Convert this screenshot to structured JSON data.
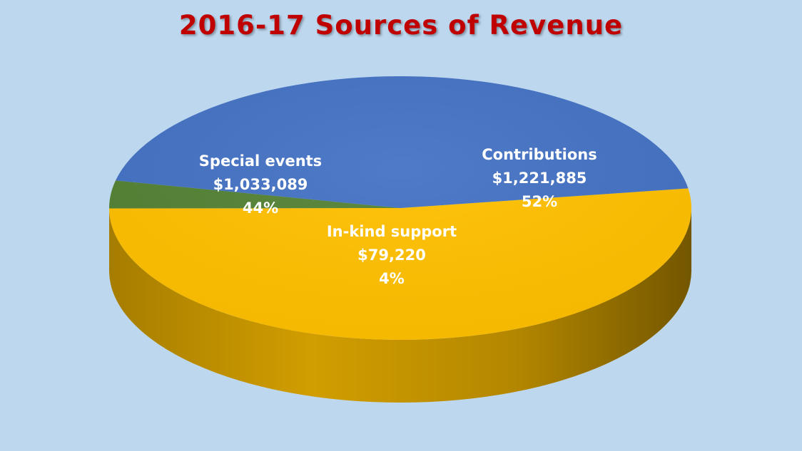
{
  "chart_data": {
    "type": "pie",
    "title": "2016-17 Sources of Revenue",
    "slices": [
      {
        "label": "Contributions",
        "value": 1221885,
        "value_text": "$1,221,885",
        "percent": 52,
        "percent_text": "52%",
        "color": "#ffc000"
      },
      {
        "label": "In-kind support",
        "value": 79220,
        "value_text": "$79,220",
        "percent": 4,
        "percent_text": "4%",
        "color": "#548235"
      },
      {
        "label": "Special events",
        "value": 1033089,
        "value_text": "$1,033,089",
        "percent": 44,
        "percent_text": "44%",
        "color": "#4472c4"
      }
    ],
    "style": "3d",
    "background": "#bdd7ee",
    "title_color": "#c00000",
    "label_color": "#ffffff"
  }
}
